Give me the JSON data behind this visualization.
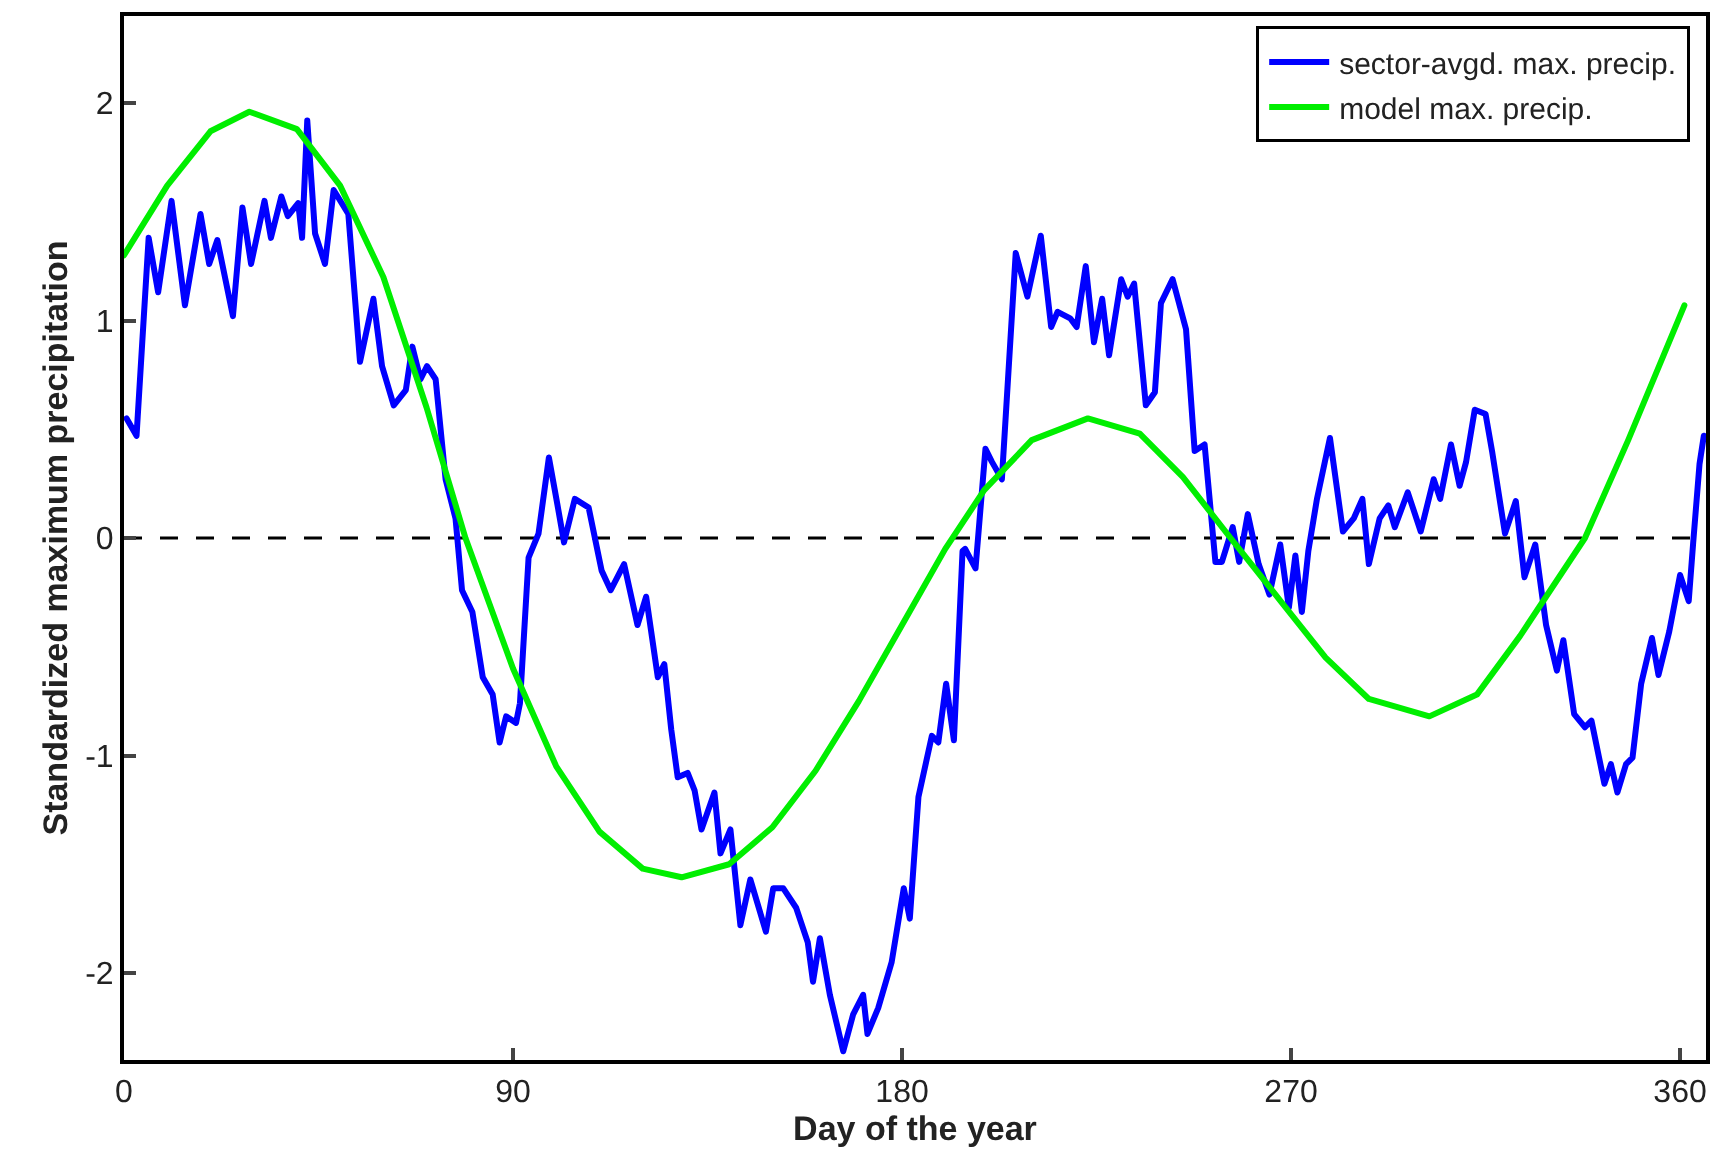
{
  "chart_data": {
    "type": "line",
    "xlabel": "Day of the year",
    "ylabel": "Standardized maximum precipitation",
    "xlim": [
      0,
      366
    ],
    "ylim": [
      -2.4,
      2.4
    ],
    "xticks": [
      0,
      90,
      180,
      270,
      360
    ],
    "yticks": [
      -2,
      -1,
      0,
      1,
      2
    ],
    "grid": false,
    "legend": "top right",
    "marker": "none",
    "line_style": "solid",
    "ref_lines": [
      {
        "axis": "y",
        "value": 0,
        "color": "#000000",
        "line_style": "dashed"
      }
    ],
    "series": [
      {
        "name": "sector-avgd. max. precip.",
        "color": "#0000ff",
        "x": [
          0.6,
          2.9,
          5.7,
          7.9,
          11,
          14.1,
          17.7,
          19.7,
          21.6,
          25.2,
          27.4,
          29.4,
          32.5,
          34,
          36.4,
          37.9,
          40.3,
          41.2,
          42.4,
          44.2,
          46.5,
          48.5,
          51.9,
          54.6,
          57.7,
          59.7,
          62.4,
          65.2,
          66.7,
          68.6,
          70.1,
          72.1,
          74.4,
          76.7,
          78.2,
          80.6,
          83,
          85.3,
          86.9,
          88.4,
          90.7,
          91.6,
          93.6,
          95.9,
          98.3,
          100.3,
          101.8,
          104.3,
          107.5,
          110.5,
          112.6,
          115.7,
          118.8,
          120.8,
          123.5,
          125,
          126.6,
          128.1,
          130.4,
          132,
          133.6,
          136.6,
          138,
          140.3,
          142.6,
          144.9,
          148.5,
          150.2,
          152.5,
          155.5,
          158.2,
          159.4,
          161,
          163.3,
          166.4,
          168.7,
          171,
          172,
          174.5,
          177.6,
          180.4,
          181.8,
          183.8,
          186.9,
          188.4,
          190.2,
          192,
          194,
          194.6,
          197,
          199.3,
          200.8,
          203.1,
          206.3,
          209,
          212.1,
          214.5,
          216,
          218.9,
          220.4,
          222.5,
          224.4,
          226.3,
          227.9,
          230.7,
          232.2,
          233.7,
          236.4,
          238.5,
          239.9,
          242.6,
          245.7,
          247.7,
          250,
          252.5,
          254,
          256.5,
          258,
          260,
          262.5,
          265,
          267.5,
          269.5,
          271,
          272.5,
          274,
          276,
          279,
          282,
          284.5,
          286.5,
          288,
          290.5,
          292.5,
          294,
          297,
          300,
          303,
          304.5,
          307,
          309,
          310.5,
          312.5,
          315,
          316.5,
          319.5,
          322,
          324,
          326.5,
          329,
          331.5,
          333,
          335.5,
          338,
          339.5,
          342.5,
          344,
          345.5,
          347.5,
          349,
          351,
          353.5,
          355,
          357.5,
          360,
          362,
          363,
          364.5,
          365.5
        ],
        "values": [
          0.55,
          0.47,
          1.38,
          1.13,
          1.55,
          1.07,
          1.49,
          1.26,
          1.37,
          1.02,
          1.52,
          1.26,
          1.55,
          1.38,
          1.57,
          1.48,
          1.54,
          1.38,
          1.92,
          1.4,
          1.26,
          1.6,
          1.49,
          0.81,
          1.1,
          0.79,
          0.61,
          0.68,
          0.88,
          0.73,
          0.79,
          0.73,
          0.27,
          0.09,
          -0.24,
          -0.34,
          -0.64,
          -0.72,
          -0.94,
          -0.82,
          -0.85,
          -0.76,
          -0.09,
          0.02,
          0.37,
          0.15,
          -0.02,
          0.18,
          0.14,
          -0.15,
          -0.24,
          -0.12,
          -0.4,
          -0.27,
          -0.64,
          -0.58,
          -0.88,
          -1.1,
          -1.08,
          -1.16,
          -1.34,
          -1.17,
          -1.45,
          -1.34,
          -1.78,
          -1.57,
          -1.81,
          -1.61,
          -1.61,
          -1.7,
          -1.86,
          -2.04,
          -1.84,
          -2.1,
          -2.36,
          -2.19,
          -2.1,
          -2.28,
          -2.16,
          -1.95,
          -1.61,
          -1.75,
          -1.19,
          -0.91,
          -0.94,
          -0.67,
          -0.93,
          -0.06,
          -0.05,
          -0.14,
          0.41,
          0.35,
          0.27,
          1.31,
          1.11,
          1.39,
          0.97,
          1.04,
          1.01,
          0.97,
          1.25,
          0.9,
          1.1,
          0.84,
          1.19,
          1.11,
          1.17,
          0.61,
          0.67,
          1.08,
          1.19,
          0.96,
          0.4,
          0.43,
          -0.11,
          -0.11,
          0.05,
          -0.11,
          0.11,
          -0.12,
          -0.26,
          -0.03,
          -0.32,
          -0.08,
          -0.34,
          -0.06,
          0.18,
          0.46,
          0.03,
          0.09,
          0.18,
          -0.12,
          0.09,
          0.15,
          0.05,
          0.21,
          0.03,
          0.27,
          0.18,
          0.43,
          0.24,
          0.35,
          0.59,
          0.57,
          0.4,
          0.02,
          0.17,
          -0.18,
          -0.03,
          -0.4,
          -0.61,
          -0.47,
          -0.81,
          -0.87,
          -0.84,
          -1.13,
          -1.04,
          -1.17,
          -1.04,
          -1.01,
          -0.67,
          -0.46,
          -0.63,
          -0.43,
          -0.17,
          -0.29,
          -0.03,
          0.34,
          0.47
        ]
      },
      {
        "name": "model max. precip.",
        "color": "#00ee00",
        "x": [
          0,
          10,
          20,
          29,
          40,
          50,
          60,
          70,
          79,
          90,
          100,
          110,
          120,
          129,
          140,
          150,
          160,
          170,
          180,
          190,
          199,
          210,
          223,
          235,
          245,
          256,
          268,
          278,
          288,
          302,
          313,
          323,
          338,
          348,
          361
        ],
        "values": [
          1.3,
          1.62,
          1.87,
          1.96,
          1.88,
          1.62,
          1.2,
          0.6,
          0,
          -0.6,
          -1.05,
          -1.35,
          -1.52,
          -1.56,
          -1.5,
          -1.33,
          -1.07,
          -0.75,
          -0.4,
          -0.05,
          0.22,
          0.45,
          0.55,
          0.48,
          0.28,
          0,
          -0.3,
          -0.55,
          -0.74,
          -0.82,
          -0.72,
          -0.45,
          0,
          0.45,
          1.07
        ]
      }
    ]
  }
}
